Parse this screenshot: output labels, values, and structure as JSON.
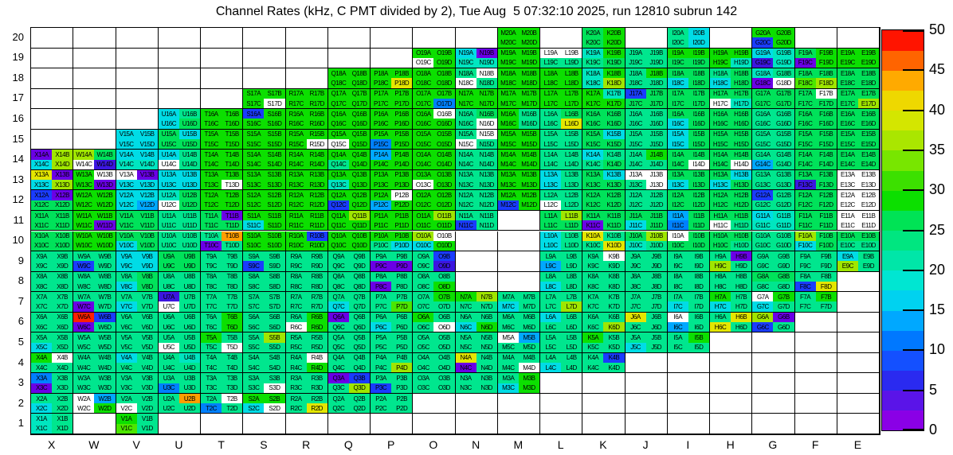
{
  "title": "Channel Rates (kHz, C PMT divided by 2), Tue Aug  5 07:32:10 2025, run 12810 subrun 142",
  "chart_data": {
    "type": "heatmap",
    "title": "Channel Rates (kHz, C PMT divided by 2), Tue Aug  5 07:32:10 2025, run 12810 subrun 142",
    "unit": "kHz",
    "x_labels": [
      "X",
      "W",
      "V",
      "U",
      "T",
      "S",
      "R",
      "Q",
      "P",
      "O",
      "N",
      "M",
      "L",
      "K",
      "J",
      "I",
      "H",
      "G",
      "F",
      "E"
    ],
    "y_labels": [
      "20",
      "19",
      "18",
      "17",
      "16",
      "15",
      "14",
      "13",
      "12",
      "11",
      "10",
      "9",
      "8",
      "7",
      "6",
      "5",
      "4",
      "3",
      "2",
      "1"
    ],
    "suffixes": [
      "A",
      "B",
      "C",
      "D"
    ],
    "quadrant_order": "A B top row, C D bottom row",
    "palette": {
      "w": "#ffffff",
      "v": "#6a00e6",
      "i": "#3c16e0",
      "B": "#1a3cff",
      "b": "#0080ff",
      "l": "#00a8ff",
      "c": "#00dce6",
      "T": "#00e6c0",
      "t": "#00e68e",
      "G": "#00e25a",
      "g": "#0cdf00",
      "e": "#4ce600",
      "Y": "#a0e600",
      "y": "#e4e600",
      "o": "#ff9e00",
      "r": "#ff2000"
    },
    "code_values_khz": {
      "w": 0,
      "v": 1,
      "i": 4,
      "B": 6,
      "b": 10,
      "l": 13,
      "c": 16,
      "T": 19,
      "t": 22,
      "G": 24,
      "g": 28,
      "e": 31,
      "Y": 34,
      "y": 38,
      "o": 42,
      "r": 48
    },
    "rows": {
      "20": [
        [
          "M",
          "gggg"
        ],
        [
          "K",
          "GgGg"
        ],
        [
          "I",
          "tctc"
        ],
        [
          "G",
          "ggBg"
        ]
      ],
      "19": [
        [
          "O",
          "ggwg"
        ],
        [
          "N",
          "cvTT"
        ],
        [
          "M",
          "gggg"
        ],
        [
          "L",
          "wwtt"
        ],
        [
          "K",
          "TgtG"
        ],
        [
          "J",
          "tttt"
        ],
        [
          "I",
          "ggGG"
        ],
        [
          "H",
          "gggT"
        ],
        [
          "G",
          "cTiT"
        ],
        [
          "F",
          "Ggvg"
        ],
        [
          "E",
          "gggg"
        ]
      ],
      "18": [
        [
          "Q",
          "gggg"
        ],
        [
          "P",
          "gggy"
        ],
        [
          "O",
          "gggg"
        ],
        [
          "N",
          "twwt"
        ],
        [
          "M",
          "gggg"
        ],
        [
          "L",
          "gggg"
        ],
        [
          "K",
          "TgTY"
        ],
        [
          "J",
          "tgtt"
        ],
        [
          "I",
          "GGcG"
        ],
        [
          "H",
          "tGcG"
        ],
        [
          "G",
          "Ttvw"
        ],
        [
          "F",
          "GGeY"
        ],
        [
          "E",
          "GGGG"
        ]
      ],
      "17": [
        [
          "S",
          "gggw"
        ],
        [
          "R",
          "gggg"
        ],
        [
          "Q",
          "gggg"
        ],
        [
          "P",
          "gggg"
        ],
        [
          "O",
          "gggb"
        ],
        [
          "N",
          "gggg"
        ],
        [
          "M",
          "gggg"
        ],
        [
          "L",
          "gggg"
        ],
        [
          "K",
          "gTgg"
        ],
        [
          "J",
          "BGGG"
        ],
        [
          "I",
          "GGGG"
        ],
        [
          "H",
          "GGwT"
        ],
        [
          "G",
          "GGGG"
        ],
        [
          "F",
          "GwGG"
        ],
        [
          "E",
          "GGGY"
        ]
      ],
      "16": [
        [
          "U",
          "ctcG"
        ],
        [
          "T",
          "gggg"
        ],
        [
          "S",
          "Bggg"
        ],
        [
          "R",
          "gggg"
        ],
        [
          "Q",
          "gggg"
        ],
        [
          "P",
          "gggg"
        ],
        [
          "O",
          "gwgg"
        ],
        [
          "N",
          "tGtw"
        ],
        [
          "M",
          "gtgt"
        ],
        [
          "L",
          "tGty"
        ],
        [
          "K",
          "GGGG"
        ],
        [
          "J",
          "tttt"
        ],
        [
          "I",
          "GGcG"
        ],
        [
          "H",
          "GGGG"
        ],
        [
          "G",
          "tttt"
        ],
        [
          "F",
          "GGGG"
        ],
        [
          "E",
          "GGGG"
        ]
      ],
      "15": [
        [
          "V",
          "cccc"
        ],
        [
          "U",
          "GcGG"
        ],
        [
          "T",
          "gggg"
        ],
        [
          "S",
          "gggg"
        ],
        [
          "R",
          "gggw"
        ],
        [
          "Q",
          "ggwg"
        ],
        [
          "P",
          "ggbg"
        ],
        [
          "O",
          "gggg"
        ],
        [
          "N",
          "twwt"
        ],
        [
          "M",
          "gggg"
        ],
        [
          "L",
          "tttt"
        ],
        [
          "K",
          "GcGG"
        ],
        [
          "J",
          "tttt"
        ],
        [
          "I",
          "cGcG"
        ],
        [
          "H",
          "GGGG"
        ],
        [
          "G",
          "tttt"
        ],
        [
          "F",
          "GGGG"
        ],
        [
          "E",
          "GGGG"
        ]
      ],
      "14": [
        [
          "X",
          "vYcY"
        ],
        [
          "W",
          "YGwi"
        ],
        [
          "V",
          "ccTT"
        ],
        [
          "U",
          "ctwt"
        ],
        [
          "T",
          "gggg"
        ],
        [
          "S",
          "gggg"
        ],
        [
          "R",
          "gggg"
        ],
        [
          "Q",
          "ggtg"
        ],
        [
          "P",
          "lggg"
        ],
        [
          "O",
          "gggg"
        ],
        [
          "N",
          "tttt"
        ],
        [
          "M",
          "gggg"
        ],
        [
          "L",
          "tttt"
        ],
        [
          "K",
          "cttG"
        ],
        [
          "J",
          "tgtt"
        ],
        [
          "I",
          "GGGw"
        ],
        [
          "H",
          "GGGw"
        ],
        [
          "G",
          "ttlt"
        ],
        [
          "F",
          "GGGG"
        ],
        [
          "E",
          "GGGG"
        ]
      ],
      "13": [
        [
          "X",
          "yvcY"
        ],
        [
          "W",
          "gwgv"
        ],
        [
          "V",
          "wvcc"
        ],
        [
          "U",
          "cccc"
        ],
        [
          "T",
          "gggw"
        ],
        [
          "S",
          "gggg"
        ],
        [
          "R",
          "gggg"
        ],
        [
          "Q",
          "ggTg"
        ],
        [
          "P",
          "gggg"
        ],
        [
          "O",
          "ggwg"
        ],
        [
          "N",
          "tttt"
        ],
        [
          "M",
          "gggg"
        ],
        [
          "L",
          "ctct"
        ],
        [
          "K",
          "GcGG"
        ],
        [
          "J",
          "wwtw"
        ],
        [
          "I",
          "GGcG"
        ],
        [
          "H",
          "GccG"
        ],
        [
          "G",
          "tttt"
        ],
        [
          "F",
          "GGiG"
        ],
        [
          "E",
          "wwww"
        ]
      ],
      "12": [
        [
          "X",
          "BvGG"
        ],
        [
          "W",
          "gggg"
        ],
        [
          "V",
          "cccl"
        ],
        [
          "U",
          "TGwG"
        ],
        [
          "T",
          "gggg"
        ],
        [
          "S",
          "gggg"
        ],
        [
          "R",
          "gggg"
        ],
        [
          "Q",
          "ggBg"
        ],
        [
          "P",
          "gwlg"
        ],
        [
          "O",
          "gggg"
        ],
        [
          "N",
          "tttt"
        ],
        [
          "M",
          "ggBg"
        ],
        [
          "L",
          "ttwt"
        ],
        [
          "K",
          "GGGG"
        ],
        [
          "J",
          "tttt"
        ],
        [
          "I",
          "GGGG"
        ],
        [
          "H",
          "GGGG"
        ],
        [
          "G",
          "Bttt"
        ],
        [
          "F",
          "GGGG"
        ],
        [
          "E",
          "wwww"
        ]
      ],
      "11": [
        [
          "X",
          "GGGG"
        ],
        [
          "W",
          "gggv"
        ],
        [
          "V",
          "GGGG"
        ],
        [
          "U",
          "tttt"
        ],
        [
          "T",
          "GvGG"
        ],
        [
          "S",
          "ggcg"
        ],
        [
          "R",
          "gggg"
        ],
        [
          "Q",
          "gYgg"
        ],
        [
          "P",
          "gggg"
        ],
        [
          "O",
          "gYgg"
        ],
        [
          "N",
          "ttBt"
        ],
        [
          "L",
          "GYGG"
        ],
        [
          "K",
          "GGvG"
        ],
        [
          "J",
          "GGcG"
        ],
        [
          "I",
          "lGbG"
        ],
        [
          "H",
          "GGwt"
        ],
        [
          "G",
          "cTTT"
        ],
        [
          "F",
          "GGGG"
        ],
        [
          "E",
          "wwww"
        ]
      ],
      "10": [
        [
          "X",
          "GGGG"
        ],
        [
          "W",
          "gggg"
        ],
        [
          "V",
          "GGcG"
        ],
        [
          "U",
          "tttt"
        ],
        [
          "T",
          "tovt"
        ],
        [
          "S",
          "gggg"
        ],
        [
          "R",
          "gBgg"
        ],
        [
          "Q",
          "gggg"
        ],
        [
          "P",
          "ggtc"
        ],
        [
          "O",
          "Ywcg"
        ],
        [
          "L",
          "ctct"
        ],
        [
          "K",
          "ytty"
        ],
        [
          "J",
          "GYTt"
        ],
        [
          "I",
          "wGGG"
        ],
        [
          "H",
          "GGGt"
        ],
        [
          "G",
          "tttt"
        ],
        [
          "F",
          "YGcG"
        ],
        [
          "E",
          "GGtt"
        ]
      ],
      "9": [
        [
          "X",
          "tttt"
        ],
        [
          "W",
          "ttBt"
        ],
        [
          "V",
          "cccc"
        ],
        [
          "U",
          "GGGG"
        ],
        [
          "T",
          "tttt"
        ],
        [
          "S",
          "ttBt"
        ],
        [
          "R",
          "tttt"
        ],
        [
          "Q",
          "tttt"
        ],
        [
          "P",
          "ttvv"
        ],
        [
          "O",
          "tBti"
        ],
        [
          "L",
          "ttlt"
        ],
        [
          "K",
          "twtt"
        ],
        [
          "J",
          "tttt"
        ],
        [
          "I",
          "tttt"
        ],
        [
          "H",
          "tvYt"
        ],
        [
          "G",
          "tttt"
        ],
        [
          "F",
          "tttt"
        ],
        [
          "E",
          "ctYt"
        ]
      ],
      "8": [
        [
          "X",
          "tttt"
        ],
        [
          "W",
          "tttt"
        ],
        [
          "V",
          "tGcG"
        ],
        [
          "U",
          "tttt"
        ],
        [
          "T",
          "tttt"
        ],
        [
          "S",
          "tttt"
        ],
        [
          "R",
          "tttt"
        ],
        [
          "Q",
          "tttt"
        ],
        [
          "P",
          "ttvt"
        ],
        [
          "O",
          "tttg"
        ],
        [
          "L",
          "ttct"
        ],
        [
          "K",
          "tttt"
        ],
        [
          "J",
          "tttt"
        ],
        [
          "I",
          "tttt"
        ],
        [
          "H",
          "tttt"
        ],
        [
          "G",
          "GGtt"
        ],
        [
          "F",
          "ttBy"
        ]
      ],
      "7": [
        [
          "X",
          "tttt"
        ],
        [
          "W",
          "ttvt"
        ],
        [
          "V",
          "ttct"
        ],
        [
          "U",
          "itwt"
        ],
        [
          "T",
          "tttt"
        ],
        [
          "S",
          "tttt"
        ],
        [
          "R",
          "tttt"
        ],
        [
          "Q",
          "ttct"
        ],
        [
          "P",
          "ttte"
        ],
        [
          "O",
          "tgtt"
        ],
        [
          "N",
          "gYtt"
        ],
        [
          "M",
          "ttct"
        ],
        [
          "L",
          "tttY"
        ],
        [
          "K",
          "tttt"
        ],
        [
          "J",
          "tttt"
        ],
        [
          "I",
          "ttct"
        ],
        [
          "H",
          "gtct"
        ],
        [
          "G",
          "wgct"
        ],
        [
          "F",
          "tgtt"
        ]
      ],
      "6": [
        [
          "X",
          "tttt"
        ],
        [
          "W",
          "rBvt"
        ],
        [
          "V",
          "tttt"
        ],
        [
          "U",
          "tttt"
        ],
        [
          "T",
          "tgtg"
        ],
        [
          "S",
          "tttt"
        ],
        [
          "R",
          "tgwg"
        ],
        [
          "Q",
          "vttt"
        ],
        [
          "P",
          "ttct"
        ],
        [
          "O",
          "gttw"
        ],
        [
          "N",
          "ttcg"
        ],
        [
          "M",
          "tttt"
        ],
        [
          "L",
          "cttt"
        ],
        [
          "K",
          "tttY"
        ],
        [
          "J",
          "yttt"
        ],
        [
          "I",
          "wtlt"
        ],
        [
          "H",
          "tyyt"
        ],
        [
          "G",
          "YvBt"
        ]
      ],
      "5": [
        [
          "X",
          "ttct"
        ],
        [
          "W",
          "tttt"
        ],
        [
          "V",
          "tttt"
        ],
        [
          "U",
          "ttwt"
        ],
        [
          "T",
          "gttw"
        ],
        [
          "S",
          "tYtt"
        ],
        [
          "R",
          "tttt"
        ],
        [
          "Q",
          "tttt"
        ],
        [
          "P",
          "tttt"
        ],
        [
          "O",
          "tttt"
        ],
        [
          "N",
          "tttt"
        ],
        [
          "M",
          "wltt"
        ],
        [
          "L",
          "tttt"
        ],
        [
          "K",
          "gttt"
        ],
        [
          "J",
          "ttct"
        ],
        [
          "I",
          "tgtt"
        ]
      ],
      "4": [
        [
          "X",
          "gwtt"
        ],
        [
          "W",
          "tttt"
        ],
        [
          "V",
          "cttt"
        ],
        [
          "U",
          "tTtt"
        ],
        [
          "T",
          "tttt"
        ],
        [
          "S",
          "tttt"
        ],
        [
          "R",
          "twtg"
        ],
        [
          "Q",
          "tttt"
        ],
        [
          "P",
          "tttY"
        ],
        [
          "O",
          "tttt"
        ],
        [
          "N",
          "ytvt"
        ],
        [
          "M",
          "tttw"
        ],
        [
          "L",
          "ttct"
        ],
        [
          "K",
          "tBtt"
        ]
      ],
      "3": [
        [
          "X",
          "btvt"
        ],
        [
          "W",
          "tttt"
        ],
        [
          "V",
          "tttt"
        ],
        [
          "U",
          "ttbt"
        ],
        [
          "T",
          "tttt"
        ],
        [
          "S",
          "tttw"
        ],
        [
          "R",
          "tttt"
        ],
        [
          "Q",
          "vBtY"
        ],
        [
          "P",
          "ttBt"
        ],
        [
          "O",
          "tttt"
        ],
        [
          "N",
          "tttt"
        ],
        [
          "M",
          "tgcg"
        ]
      ],
      "2": [
        [
          "X",
          "ttct"
        ],
        [
          "W",
          "wlwg"
        ],
        [
          "V",
          "ttwt"
        ],
        [
          "U",
          "tott"
        ],
        [
          "T",
          "twbt"
        ],
        [
          "S",
          "ggcw"
        ],
        [
          "R",
          "ttty"
        ],
        [
          "Q",
          "tttt"
        ],
        [
          "P",
          "tttt"
        ]
      ],
      "1": [
        [
          "X",
          "TtTt"
        ],
        [
          "V",
          "gtet"
        ]
      ]
    },
    "colorbar": {
      "min": 0,
      "max": 50,
      "ticks": [
        "0",
        "5",
        "10",
        "15",
        "20",
        "25",
        "30",
        "35",
        "40",
        "45",
        "50"
      ],
      "bands_bottom_to_top": [
        "#8a00e6",
        "#5a14e8",
        "#2a2af0",
        "#1450ff",
        "#0078ff",
        "#00a8ff",
        "#00d2f0",
        "#00e6d2",
        "#00e6a8",
        "#00e680",
        "#00e355",
        "#0cdf00",
        "#3ce000",
        "#78e600",
        "#aae600",
        "#d4e600",
        "#eed800",
        "#ffaa00",
        "#ff6400",
        "#ff1400"
      ],
      "legend_position": "right"
    },
    "grid_on": true
  }
}
